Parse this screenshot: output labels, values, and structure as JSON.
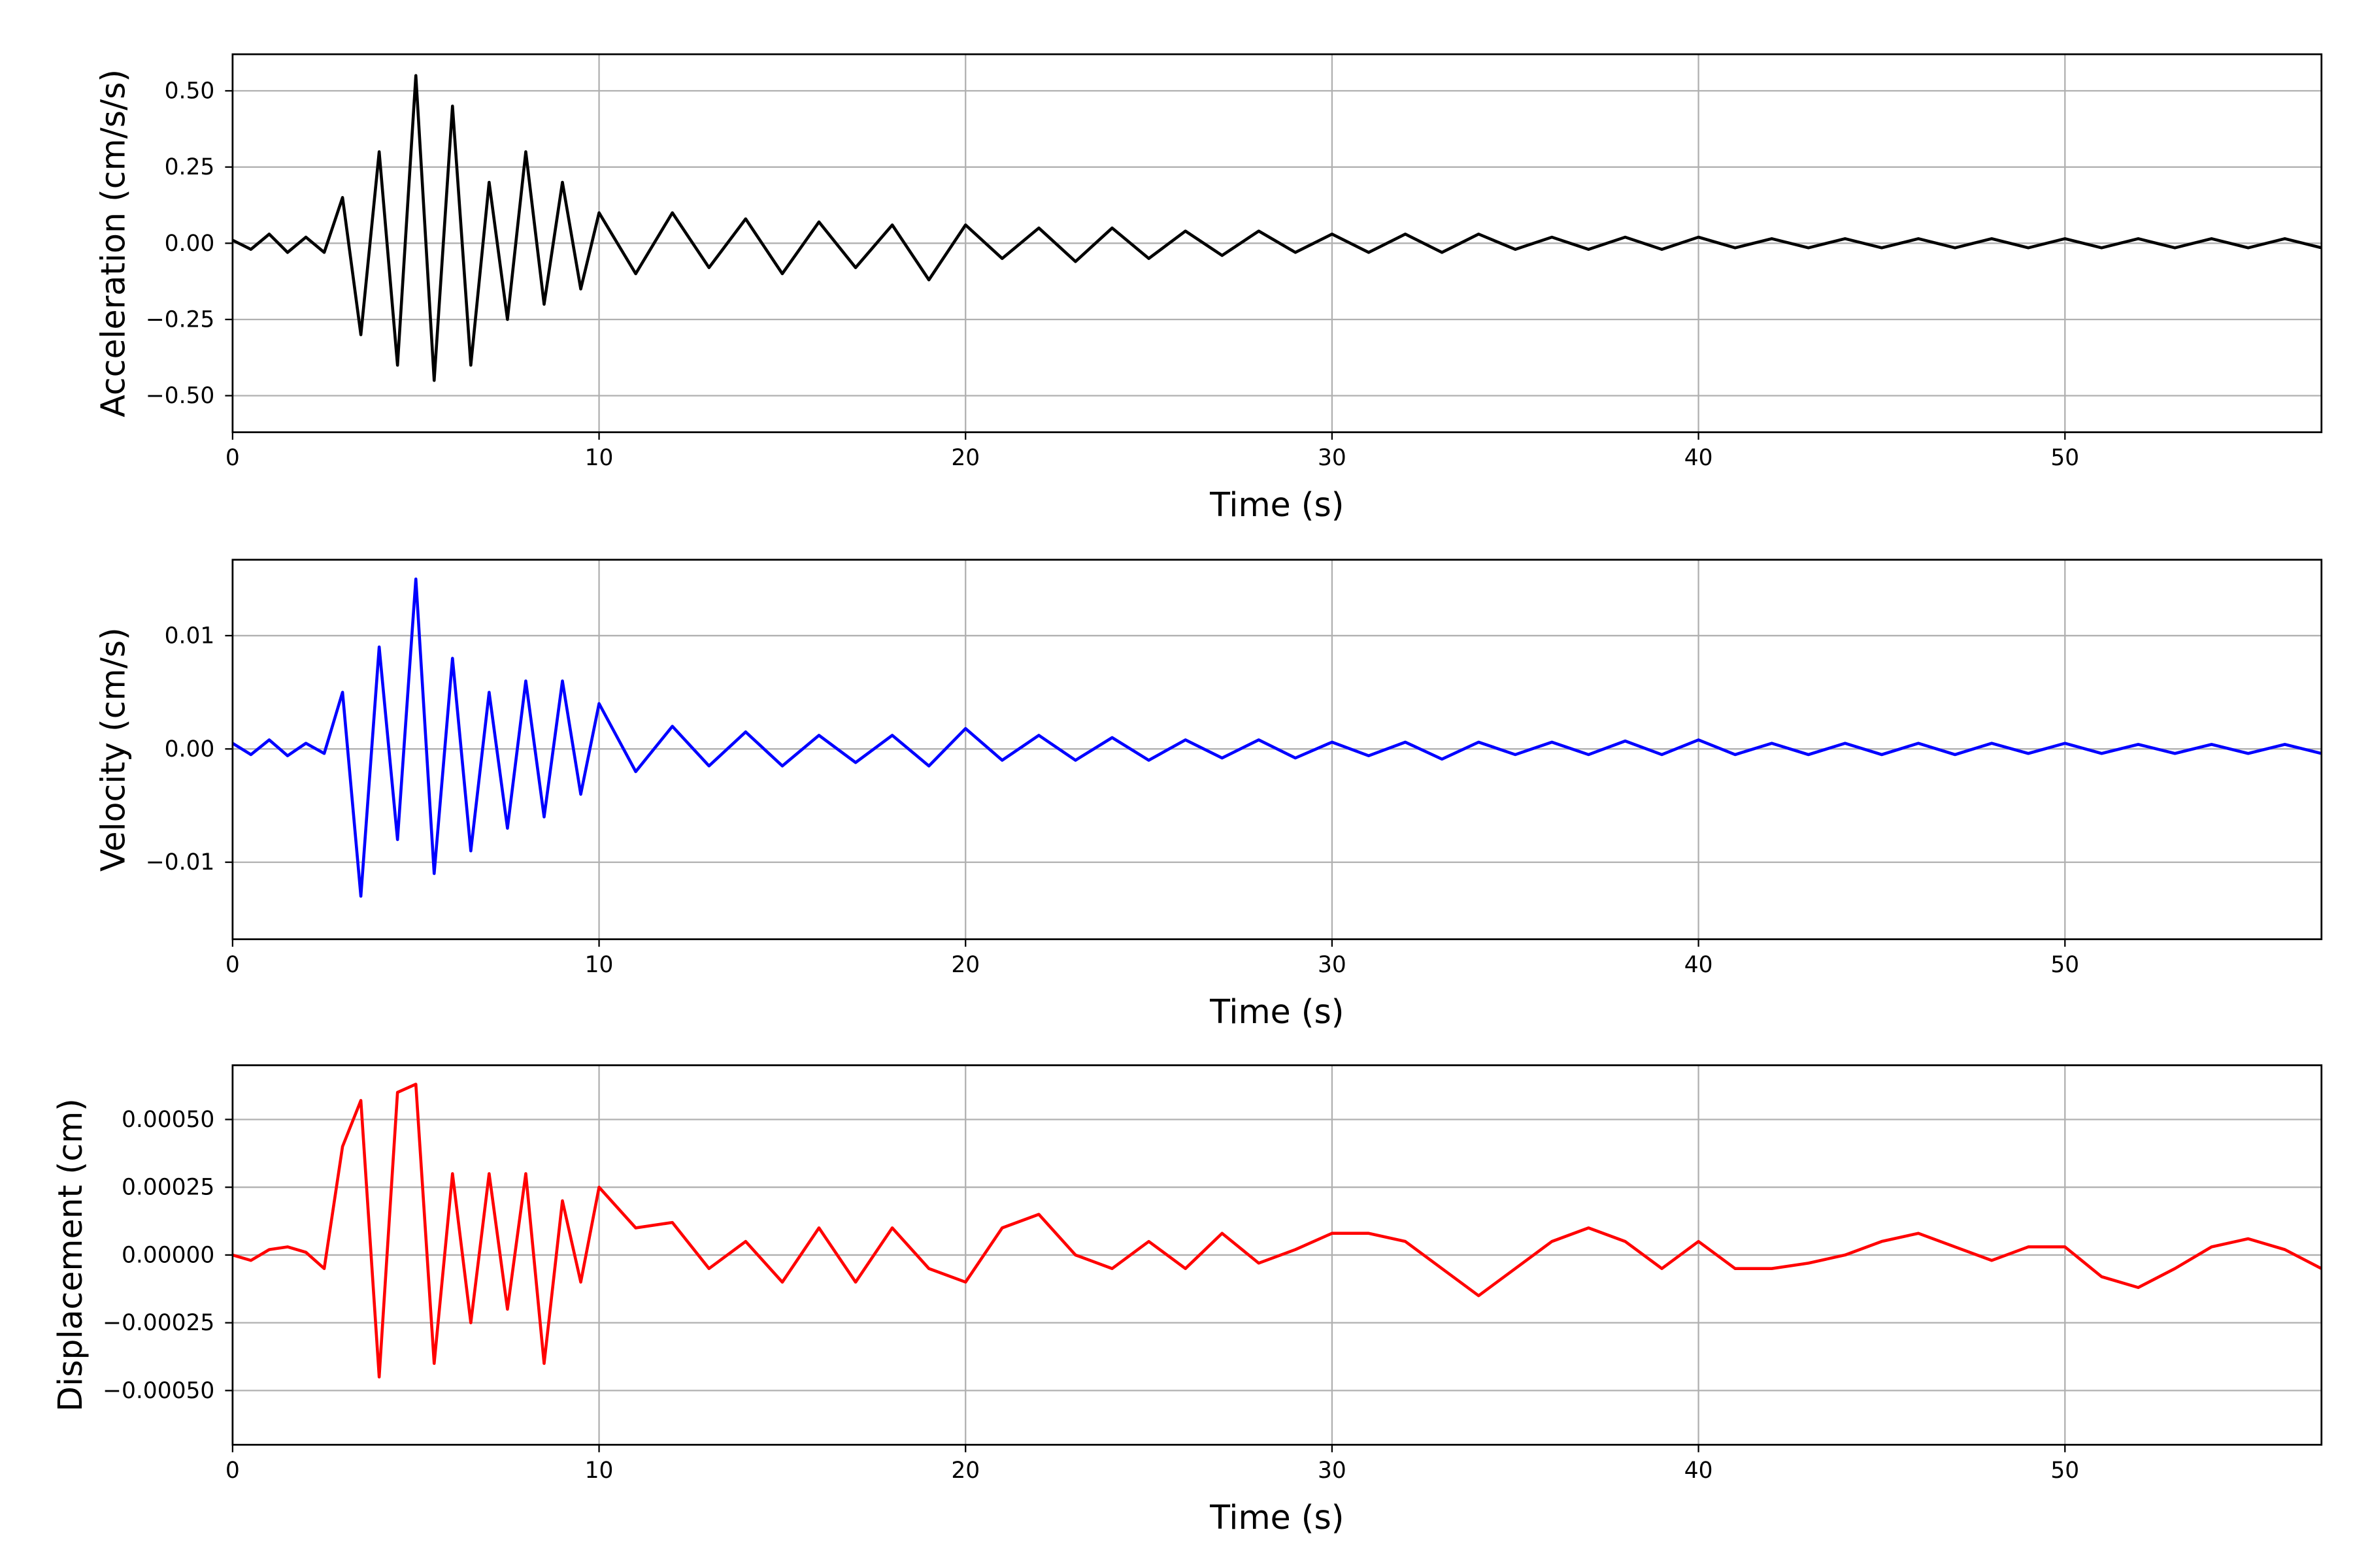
{
  "chart_data": [
    {
      "type": "line",
      "ylabel": "Acceleration (cm/s/s)",
      "xlabel": "Time (s)",
      "grid": true,
      "xlim": [
        0,
        57
      ],
      "xticks": [
        0,
        10,
        20,
        30,
        40,
        50
      ],
      "ylim": [
        -0.62,
        0.62
      ],
      "yticks": [
        {
          "value": -0.5,
          "label": "−0.50"
        },
        {
          "value": -0.25,
          "label": "−0.25"
        },
        {
          "value": 0,
          "label": "0.00"
        },
        {
          "value": 0.25,
          "label": "0.25"
        },
        {
          "value": 0.5,
          "label": "0.50"
        }
      ],
      "x": [
        0,
        0.5,
        1,
        1.5,
        2,
        2.5,
        3,
        3.5,
        4,
        4.5,
        5,
        5.5,
        6,
        6.5,
        7,
        7.5,
        8,
        8.5,
        9,
        9.5,
        10,
        11,
        12,
        13,
        14,
        15,
        16,
        17,
        18,
        19,
        20,
        21,
        22,
        23,
        24,
        25,
        26,
        27,
        28,
        29,
        30,
        31,
        32,
        33,
        34,
        35,
        36,
        37,
        38,
        39,
        40,
        41,
        42,
        43,
        44,
        45,
        46,
        47,
        48,
        49,
        50,
        51,
        52,
        53,
        54,
        55,
        56,
        57
      ],
      "series": [
        {
          "color": "#000000",
          "values": [
            0.01,
            -0.02,
            0.03,
            -0.03,
            0.02,
            -0.03,
            0.15,
            -0.3,
            0.3,
            -0.4,
            0.55,
            -0.45,
            0.45,
            -0.4,
            0.2,
            -0.25,
            0.3,
            -0.2,
            0.2,
            -0.15,
            0.1,
            -0.1,
            0.1,
            -0.08,
            0.08,
            -0.1,
            0.07,
            -0.08,
            0.06,
            -0.12,
            0.06,
            -0.05,
            0.05,
            -0.06,
            0.05,
            -0.05,
            0.04,
            -0.04,
            0.04,
            -0.03,
            0.03,
            -0.03,
            0.03,
            -0.03,
            0.03,
            -0.02,
            0.02,
            -0.02,
            0.02,
            -0.02,
            0.02,
            -0.015,
            0.015,
            -0.015,
            0.015,
            -0.015,
            0.015,
            -0.015,
            0.015,
            -0.015,
            0.015,
            -0.015,
            0.015,
            -0.015,
            0.015,
            -0.015,
            0.015,
            -0.015
          ]
        }
      ]
    },
    {
      "type": "line",
      "ylabel": "Velocity (cm/s)",
      "xlabel": "Time (s)",
      "grid": true,
      "xlim": [
        0,
        57
      ],
      "xticks": [
        0,
        10,
        20,
        30,
        40,
        50
      ],
      "ylim": [
        -0.0168,
        0.0167
      ],
      "yticks": [
        {
          "value": -0.01,
          "label": "−0.01"
        },
        {
          "value": 0,
          "label": "0.00"
        },
        {
          "value": 0.01,
          "label": "0.01"
        }
      ],
      "x": [
        0,
        0.5,
        1,
        1.5,
        2,
        2.5,
        3,
        3.5,
        4,
        4.5,
        5,
        5.5,
        6,
        6.5,
        7,
        7.5,
        8,
        8.5,
        9,
        9.5,
        10,
        11,
        12,
        13,
        14,
        15,
        16,
        17,
        18,
        19,
        20,
        21,
        22,
        23,
        24,
        25,
        26,
        27,
        28,
        29,
        30,
        31,
        32,
        33,
        34,
        35,
        36,
        37,
        38,
        39,
        40,
        41,
        42,
        43,
        44,
        45,
        46,
        47,
        48,
        49,
        50,
        51,
        52,
        53,
        54,
        55,
        56,
        57
      ],
      "series": [
        {
          "color": "#0000ff",
          "values": [
            0.0005,
            -0.0005,
            0.0008,
            -0.0006,
            0.0005,
            -0.0004,
            0.005,
            -0.013,
            0.009,
            -0.008,
            0.015,
            -0.011,
            0.008,
            -0.009,
            0.005,
            -0.007,
            0.006,
            -0.006,
            0.006,
            -0.004,
            0.004,
            -0.002,
            0.002,
            -0.0015,
            0.0015,
            -0.0015,
            0.0012,
            -0.0012,
            0.0012,
            -0.0015,
            0.0018,
            -0.001,
            0.0012,
            -0.001,
            0.001,
            -0.001,
            0.0008,
            -0.0008,
            0.0008,
            -0.0008,
            0.0006,
            -0.0006,
            0.0006,
            -0.0009,
            0.0006,
            -0.0005,
            0.0006,
            -0.0005,
            0.0007,
            -0.0005,
            0.0008,
            -0.0005,
            0.0005,
            -0.0005,
            0.0005,
            -0.0005,
            0.0005,
            -0.0005,
            0.0005,
            -0.0004,
            0.0005,
            -0.0004,
            0.0004,
            -0.0004,
            0.0004,
            -0.0004,
            0.0004,
            -0.0004
          ]
        }
      ]
    },
    {
      "type": "line",
      "ylabel": "Displacement (cm)",
      "xlabel": "Time (s)",
      "grid": true,
      "xlim": [
        0,
        57
      ],
      "xticks": [
        0,
        10,
        20,
        30,
        40,
        50
      ],
      "ylim": [
        -0.0007,
        0.0007
      ],
      "yticks": [
        {
          "value": -0.0005,
          "label": "−0.00050"
        },
        {
          "value": -0.00025,
          "label": "−0.00025"
        },
        {
          "value": 0,
          "label": "0.00000"
        },
        {
          "value": 0.00025,
          "label": "0.00025"
        },
        {
          "value": 0.0005,
          "label": "0.00050"
        }
      ],
      "x": [
        0,
        0.5,
        1,
        1.5,
        2,
        2.5,
        3,
        3.5,
        4,
        4.5,
        5,
        5.5,
        6,
        6.5,
        7,
        7.5,
        8,
        8.5,
        9,
        9.5,
        10,
        11,
        12,
        13,
        14,
        15,
        16,
        17,
        18,
        19,
        20,
        21,
        22,
        23,
        24,
        25,
        26,
        27,
        28,
        29,
        30,
        31,
        32,
        33,
        34,
        35,
        36,
        37,
        38,
        39,
        40,
        41,
        42,
        43,
        44,
        45,
        46,
        47,
        48,
        49,
        50,
        51,
        52,
        53,
        54,
        55,
        56,
        57
      ],
      "series": [
        {
          "color": "#ff0000",
          "values": [
            0,
            -2e-05,
            2e-05,
            3e-05,
            1e-05,
            -5e-05,
            0.0004,
            0.00057,
            -0.00045,
            0.0006,
            0.00063,
            -0.0004,
            0.0003,
            -0.00025,
            0.0003,
            -0.0002,
            0.0003,
            -0.0004,
            0.0002,
            -0.0001,
            0.00025,
            0.0001,
            0.00012,
            -5e-05,
            5e-05,
            -0.0001,
            0.0001,
            -0.0001,
            0.0001,
            -5e-05,
            -0.0001,
            0.0001,
            0.00015,
            0,
            -5e-05,
            5e-05,
            -5e-05,
            8e-05,
            -3e-05,
            2e-05,
            8e-05,
            8e-05,
            5e-05,
            -5e-05,
            -0.00015,
            -5e-05,
            5e-05,
            0.0001,
            5e-05,
            -5e-05,
            5e-05,
            -5e-05,
            -5e-05,
            -3e-05,
            0,
            5e-05,
            8e-05,
            3e-05,
            -2e-05,
            3e-05,
            3e-05,
            -8e-05,
            -0.00012,
            -5e-05,
            3e-05,
            6e-05,
            2e-05,
            -5e-05
          ]
        }
      ]
    }
  ]
}
